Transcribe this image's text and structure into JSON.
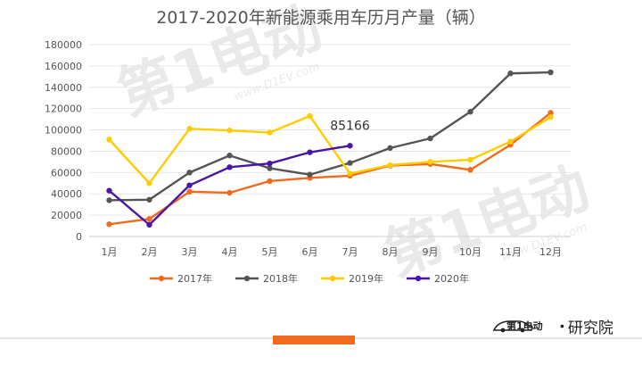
{
  "chart_data": {
    "type": "line",
    "title": "2017-2020年新能源乘用车历月产量（辆）",
    "categories": [
      "1月",
      "2月",
      "3月",
      "4月",
      "5月",
      "6月",
      "7月",
      "8月",
      "9月",
      "10月",
      "11月",
      "12月"
    ],
    "ylim": [
      0,
      180000
    ],
    "yticks": [
      0,
      20000,
      40000,
      60000,
      80000,
      100000,
      120000,
      140000,
      160000,
      180000
    ],
    "grid": true,
    "legend_position": "bottom",
    "series": [
      {
        "name": "2017年",
        "color": "#f26a1b",
        "values": [
          11500,
          16500,
          42000,
          41000,
          52000,
          55000,
          57000,
          66500,
          68000,
          62500,
          86000,
          116000
        ]
      },
      {
        "name": "2018年",
        "color": "#555555",
        "values": [
          34000,
          34500,
          60000,
          76000,
          64000,
          58000,
          69000,
          83000,
          92000,
          117000,
          153000,
          154000
        ]
      },
      {
        "name": "2019年",
        "color": "#ffcc00",
        "values": [
          91000,
          50000,
          101000,
          99500,
          97500,
          113000,
          59000,
          67000,
          70000,
          72000,
          89000,
          112000
        ]
      },
      {
        "name": "2020年",
        "color": "#4b16a8",
        "values": [
          43000,
          11000,
          48000,
          65000,
          68500,
          79000,
          85166,
          null,
          null,
          null,
          null,
          null
        ]
      }
    ],
    "annotations": [
      {
        "text": "85166",
        "series": "2020年",
        "category": "7月"
      }
    ]
  },
  "watermark": {
    "brand_text": "第1电动",
    "site_text": "www.D1EV.com"
  },
  "footer": {
    "brand_logo_text": "第1电动",
    "separator": "•",
    "brand_suffix": "研究院"
  }
}
